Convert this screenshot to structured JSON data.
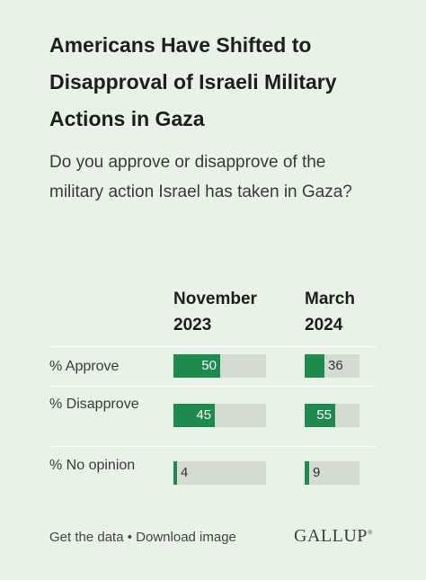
{
  "chart": {
    "title": "Americans Have Shifted to Disapproval of Israeli Military Actions in Gaza",
    "subtitle": "Do you approve or disapprove of the military action Israel has taken in Gaza?"
  },
  "chart_data": {
    "type": "bar",
    "title": "Americans Have Shifted to Disapproval of Israeli Military Actions in Gaza",
    "subtitle": "Do you approve or disapprove of the military action Israel has taken in Gaza?",
    "categories": [
      "% Approve",
      "% Disapprove",
      "% No opinion"
    ],
    "series": [
      {
        "name": "November 2023",
        "values": [
          50,
          45,
          4
        ]
      },
      {
        "name": "March 2024",
        "values": [
          36,
          55,
          9
        ]
      }
    ],
    "xlim": [
      0,
      100
    ],
    "color": "#1e8a4d",
    "track_color": "#d4dcd2"
  },
  "footer": {
    "get_data": "Get the data",
    "separator": "•",
    "download": "Download image",
    "logo": "GALLUP",
    "logo_mark": "®"
  }
}
